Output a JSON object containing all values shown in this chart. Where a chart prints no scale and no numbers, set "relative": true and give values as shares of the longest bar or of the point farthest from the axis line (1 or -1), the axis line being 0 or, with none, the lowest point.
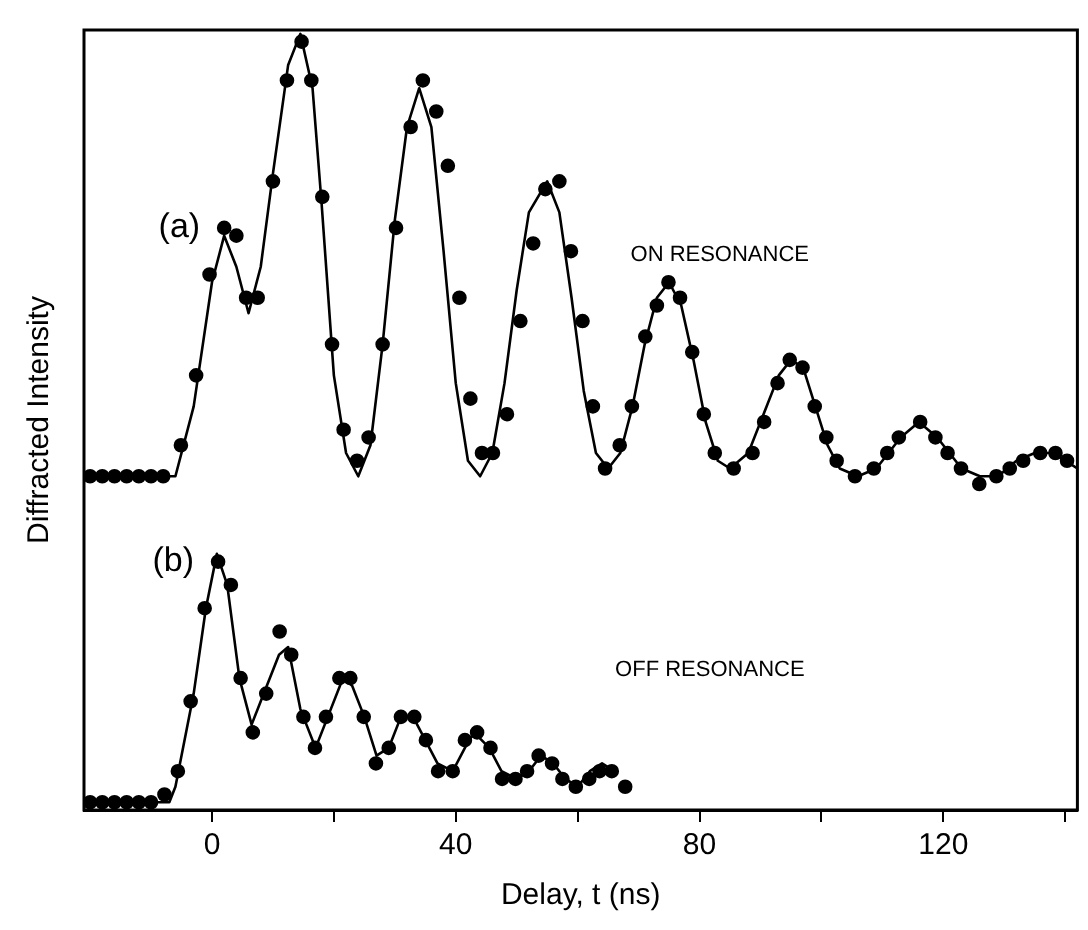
{
  "chart_data": {
    "type": "scatter",
    "relative": true,
    "xlabel": "Delay, t (ns)",
    "ylabel": "Diffracted Intensity",
    "xlim": [
      -21,
      142
    ],
    "xticks": [
      0,
      {
        "value": 20,
        "label": null
      },
      40,
      {
        "value": 60,
        "label": null
      },
      80,
      {
        "value": 100,
        "label": null
      },
      120,
      {
        "value": 140,
        "label": null
      }
    ],
    "grid": false,
    "legend": false,
    "marker": "circle",
    "series": [
      {
        "name": "(a)",
        "color": "#000000",
        "x": [
          -20,
          -18,
          -16,
          -14,
          -12,
          -10,
          -8,
          -5.1,
          -2.6,
          -0.4,
          2.0,
          4.0,
          5.6,
          7.5,
          10.0,
          12.3,
          14.7,
          16.3,
          18.1,
          19.7,
          21.6,
          23.8,
          25.7,
          28.0,
          30.2,
          32.6,
          34.6,
          36.8,
          38.7,
          40.6,
          42.4,
          44.3,
          46.1,
          48.4,
          50.6,
          52.7,
          54.7,
          57.0,
          58.9,
          60.8,
          62.5,
          64.5,
          66.9,
          68.9,
          71.1,
          73.0,
          74.9,
          76.8,
          78.8,
          80.7,
          82.5,
          85.6,
          88.7,
          90.6,
          92.8,
          94.8,
          96.9,
          98.9,
          100.8,
          102.5,
          105.5,
          108.6,
          110.8,
          112.7,
          116.2,
          118.7,
          120.7,
          122.9,
          125.9,
          128.7,
          130.9,
          133.1,
          135.9,
          138.4,
          140.3
        ],
        "values": [
          0.43,
          0.43,
          0.43,
          0.43,
          0.43,
          0.43,
          0.43,
          0.47,
          0.56,
          0.69,
          0.75,
          0.74,
          0.66,
          0.66,
          0.81,
          0.94,
          0.99,
          0.94,
          0.79,
          0.6,
          0.49,
          0.45,
          0.48,
          0.6,
          0.75,
          0.88,
          0.94,
          0.9,
          0.83,
          0.66,
          0.53,
          0.46,
          0.46,
          0.51,
          0.63,
          0.73,
          0.8,
          0.81,
          0.72,
          0.63,
          0.52,
          0.44,
          0.47,
          0.52,
          0.61,
          0.65,
          0.68,
          0.66,
          0.59,
          0.51,
          0.46,
          0.44,
          0.46,
          0.5,
          0.55,
          0.58,
          0.57,
          0.52,
          0.48,
          0.45,
          0.43,
          0.44,
          0.46,
          0.48,
          0.5,
          0.48,
          0.46,
          0.44,
          0.42,
          0.43,
          0.44,
          0.45,
          0.46,
          0.46,
          0.45
        ]
      },
      {
        "type": "line",
        "name": "ON RESONANCE",
        "color": "#000000",
        "marker": "none",
        "x": [
          -21,
          -6,
          -3,
          0,
          2,
          4,
          6,
          8,
          10,
          12.5,
          14.5,
          16.5,
          18,
          20,
          22,
          24,
          26,
          28,
          30,
          32,
          34,
          36,
          38,
          40,
          42,
          44,
          46,
          48,
          50,
          52,
          55,
          57,
          59,
          61,
          63,
          65,
          67,
          69,
          71,
          73,
          75,
          77,
          79,
          81,
          83,
          85,
          88,
          91,
          93,
          95,
          97,
          99,
          101,
          103,
          106,
          109,
          111,
          113,
          116,
          119,
          121,
          123,
          126,
          129,
          132,
          135,
          138,
          140,
          142
        ],
        "values": [
          0.43,
          0.43,
          0.52,
          0.68,
          0.74,
          0.7,
          0.64,
          0.7,
          0.82,
          0.96,
          1,
          0.93,
          0.78,
          0.56,
          0.46,
          0.43,
          0.47,
          0.6,
          0.76,
          0.88,
          0.93,
          0.88,
          0.72,
          0.55,
          0.45,
          0.43,
          0.46,
          0.55,
          0.67,
          0.77,
          0.81,
          0.77,
          0.66,
          0.54,
          0.46,
          0.44,
          0.46,
          0.52,
          0.6,
          0.66,
          0.68,
          0.65,
          0.58,
          0.5,
          0.45,
          0.44,
          0.46,
          0.52,
          0.56,
          0.58,
          0.57,
          0.52,
          0.47,
          0.44,
          0.43,
          0.44,
          0.46,
          0.48,
          0.5,
          0.48,
          0.46,
          0.44,
          0.43,
          0.43,
          0.45,
          0.46,
          0.46,
          0.45,
          0.44
        ]
      },
      {
        "name": "(b)",
        "color": "#000000",
        "x": [
          -20,
          -18,
          -16,
          -14,
          -12,
          -10,
          -7.8,
          -5.6,
          -3.5,
          -1.2,
          1.0,
          3.1,
          4.7,
          6.7,
          8.9,
          11.1,
          13.0,
          15.0,
          16.9,
          18.7,
          20.9,
          22.7,
          24.9,
          26.9,
          29.0,
          31.0,
          33.2,
          35.1,
          37.1,
          39.5,
          41.5,
          43.5,
          45.7,
          47.6,
          49.8,
          51.7,
          53.6,
          55.8,
          57.5,
          59.7,
          61.9,
          63.6,
          65.6,
          67.8
        ],
        "values": [
          0.01,
          0.01,
          0.01,
          0.01,
          0.01,
          0.01,
          0.02,
          0.05,
          0.14,
          0.26,
          0.32,
          0.29,
          0.17,
          0.1,
          0.15,
          0.23,
          0.2,
          0.12,
          0.08,
          0.12,
          0.17,
          0.17,
          0.12,
          0.06,
          0.08,
          0.12,
          0.12,
          0.09,
          0.05,
          0.05,
          0.09,
          0.1,
          0.08,
          0.04,
          0.04,
          0.05,
          0.07,
          0.06,
          0.04,
          0.03,
          0.04,
          0.05,
          0.05,
          0.03
        ]
      },
      {
        "type": "line",
        "color": "#000000",
        "marker": "none",
        "x": [
          -21,
          -7,
          -6,
          -3,
          -1,
          0.8,
          2.5,
          4.5,
          6.5,
          8.5,
          11,
          12.5,
          14.5,
          17,
          19,
          21.5,
          23,
          25,
          27,
          29,
          31,
          33,
          35,
          37,
          39.5,
          41.5,
          43,
          45.5,
          47.5,
          50,
          52,
          54,
          56,
          58,
          60,
          62,
          64,
          66
        ],
        "values": [
          0.01,
          0.01,
          0.03,
          0.15,
          0.26,
          0.33,
          0.29,
          0.17,
          0.11,
          0.15,
          0.2,
          0.21,
          0.13,
          0.08,
          0.12,
          0.17,
          0.16,
          0.12,
          0.07,
          0.08,
          0.12,
          0.12,
          0.09,
          0.06,
          0.05,
          0.08,
          0.1,
          0.08,
          0.05,
          0.04,
          0.05,
          0.07,
          0.06,
          0.04,
          0.03,
          0.05,
          0.06,
          0.05
        ]
      }
    ],
    "annotations": [
      "OFF RESONANCE"
    ]
  }
}
